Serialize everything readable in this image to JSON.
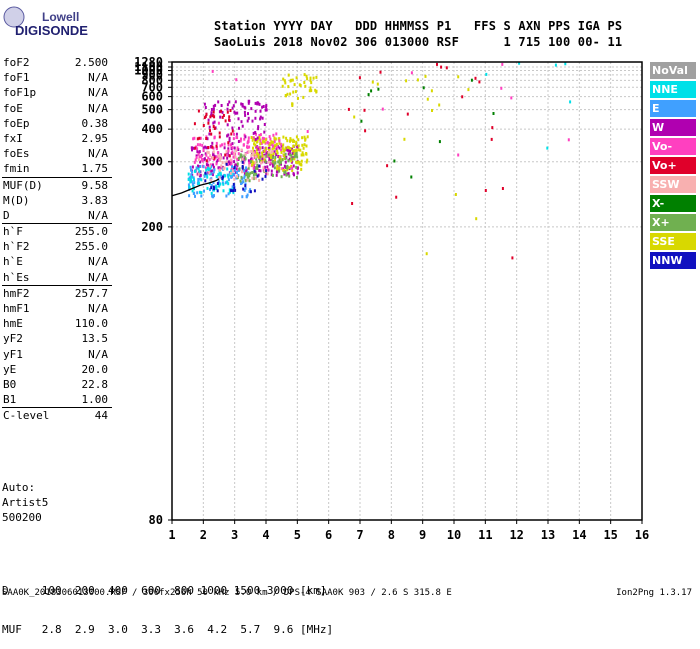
{
  "logo": {
    "line1": "Lowell",
    "line2": "DIGISONDE"
  },
  "header": {
    "labels": "Station YYYY DAY   DDD HHMMSS P1   FFS S AXN PPS IGA PS",
    "values": "SaoLuis 2018 Nov02 306 013000 RSF      1 715 100 00- 11"
  },
  "params": [
    {
      "k": "foF2",
      "v": "2.500"
    },
    {
      "k": "foF1",
      "v": "N/A"
    },
    {
      "k": "foF1p",
      "v": "N/A"
    },
    {
      "k": "foE",
      "v": "N/A"
    },
    {
      "k": "foEp",
      "v": "0.38"
    },
    {
      "k": "fxI",
      "v": "2.95"
    },
    {
      "k": "foEs",
      "v": "N/A"
    },
    {
      "k": "fmin",
      "v": "1.75"
    },
    {
      "k": "MUF(D)",
      "v": "9.58"
    },
    {
      "k": "M(D)",
      "v": "3.83"
    },
    {
      "k": "D",
      "v": "N/A"
    },
    {
      "k": "h`F",
      "v": "255.0"
    },
    {
      "k": "h`F2",
      "v": "255.0"
    },
    {
      "k": "h`E",
      "v": "N/A"
    },
    {
      "k": "h`Es",
      "v": "N/A"
    },
    {
      "k": "hmF2",
      "v": "257.7"
    },
    {
      "k": "hmF1",
      "v": "N/A"
    },
    {
      "k": "hmE",
      "v": "110.0"
    },
    {
      "k": "yF2",
      "v": "13.5"
    },
    {
      "k": "yF1",
      "v": "N/A"
    },
    {
      "k": "yE",
      "v": "20.0"
    },
    {
      "k": "B0",
      "v": "22.8"
    },
    {
      "k": "B1",
      "v": "1.00"
    },
    {
      "k": "C-level",
      "v": "44"
    }
  ],
  "auto": {
    "line1": "Auto:",
    "line2": "Artist5",
    "line3": "500200"
  },
  "legend": [
    {
      "label": "NoVal",
      "color": "#a0a0a0",
      "text": "#ffffff"
    },
    {
      "label": "NNE",
      "color": "#00e0e8",
      "text": "#ffffff"
    },
    {
      "label": "E",
      "color": "#40a0ff",
      "text": "#ffffff"
    },
    {
      "label": "W",
      "color": "#b000b0",
      "text": "#ffffff"
    },
    {
      "label": "Vo-",
      "color": "#ff40c0",
      "text": "#ffffff"
    },
    {
      "label": "Vo+",
      "color": "#e0002a",
      "text": "#ffffff"
    },
    {
      "label": "SSW",
      "color": "#f8b0b0",
      "text": "#ffffff"
    },
    {
      "label": "X-",
      "color": "#008000",
      "text": "#ffffff"
    },
    {
      "label": "X+",
      "color": "#70b050",
      "text": "#ffffff"
    },
    {
      "label": "SSE",
      "color": "#d8d800",
      "text": "#ffffff"
    },
    {
      "label": "NNW",
      "color": "#1010c0",
      "text": "#ffffff"
    }
  ],
  "bottom": {
    "line1": "D     100  200  400  600  800 1000 1500 3000 [km]",
    "line2": "MUF   2.8  2.9  3.0  3.3  3.6  4.2  5.7  9.6 [MHz]"
  },
  "footer": "SAA0K_2018306013000.RSF / 300fx256h 50 kHz 5.0 km / DPS-4 SAA0K 903 / 2.6 S 315.8 E",
  "version": "Ion2Png 1.3.17",
  "chart_data": {
    "type": "scatter",
    "x_axis": {
      "ticks": [
        1,
        2,
        3,
        4,
        5,
        6,
        7,
        8,
        9,
        10,
        11,
        12,
        13,
        14,
        15,
        16
      ],
      "range": [
        1,
        16
      ]
    },
    "y_axis": {
      "ticks": [
        80,
        200,
        300,
        400,
        500,
        600,
        700,
        800,
        900,
        1000,
        1100,
        1280
      ],
      "range": [
        80,
        1280
      ],
      "scale": "reciprocal"
    },
    "grid": true,
    "legend_placement": "right",
    "trace_points": [
      [
        1.0,
        238
      ],
      [
        1.3,
        242
      ],
      [
        1.6,
        248
      ],
      [
        1.9,
        254
      ],
      [
        2.2,
        258
      ],
      [
        2.4,
        262
      ],
      [
        2.5,
        265
      ]
    ],
    "clusters": [
      {
        "series": "W",
        "x": [
          1.6,
          5.0
        ],
        "y": [
          270,
          340
        ],
        "n": 220
      },
      {
        "series": "Vo-",
        "x": [
          1.6,
          4.5
        ],
        "y": [
          280,
          380
        ],
        "n": 140
      },
      {
        "series": "E",
        "x": [
          1.5,
          3.5
        ],
        "y": [
          235,
          290
        ],
        "n": 110
      },
      {
        "series": "NNE",
        "x": [
          1.5,
          3.0
        ],
        "y": [
          240,
          285
        ],
        "n": 60
      },
      {
        "series": "SSE",
        "x": [
          3.5,
          5.3
        ],
        "y": [
          280,
          370
        ],
        "n": 140
      },
      {
        "series": "X+",
        "x": [
          3.0,
          5.0
        ],
        "y": [
          260,
          320
        ],
        "n": 80
      },
      {
        "series": "SSE",
        "x": [
          4.5,
          5.6
        ],
        "y": [
          520,
          900
        ],
        "n": 40
      },
      {
        "series": "W",
        "x": [
          2.0,
          4.0
        ],
        "y": [
          330,
          560
        ],
        "n": 90
      },
      {
        "series": "Vo+",
        "x": [
          1.7,
          3.0
        ],
        "y": [
          300,
          500
        ],
        "n": 40
      },
      {
        "series": "SSW",
        "x": [
          1.8,
          4.2
        ],
        "y": [
          260,
          330
        ],
        "n": 60
      },
      {
        "series": "NNW",
        "x": [
          2.0,
          4.0
        ],
        "y": [
          240,
          300
        ],
        "n": 30
      },
      {
        "series": "Vo+",
        "x": [
          6.5,
          12.0
        ],
        "y": [
          140,
          1230
        ],
        "n": 20
      },
      {
        "series": "SSE",
        "x": [
          6.7,
          10.8
        ],
        "y": [
          140,
          900
        ],
        "n": 16
      },
      {
        "series": "X-",
        "x": [
          6.5,
          11.5
        ],
        "y": [
          180,
          860
        ],
        "n": 10
      },
      {
        "series": "NNE",
        "x": [
          10.5,
          13.8
        ],
        "y": [
          170,
          1220
        ],
        "n": 6
      },
      {
        "series": "Vo-",
        "x": [
          2.0,
          13.8
        ],
        "y": [
          150,
          1270
        ],
        "n": 14
      }
    ]
  }
}
